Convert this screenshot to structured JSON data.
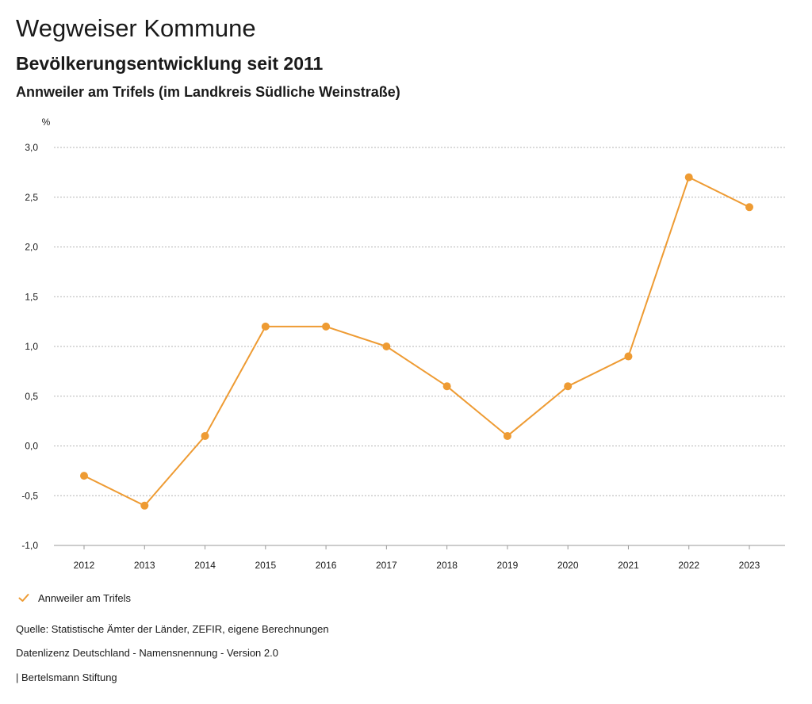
{
  "header": {
    "title": "Wegweiser Kommune",
    "subtitle": "Bevölkerungsentwicklung seit 2011",
    "region": "Annweiler am Trifels (im Landkreis Südliche Weinstraße)"
  },
  "chart_data": {
    "type": "line",
    "title": "Bevölkerungsentwicklung seit 2011",
    "xlabel": "",
    "ylabel": "%",
    "categories": [
      "2012",
      "2013",
      "2014",
      "2015",
      "2016",
      "2017",
      "2018",
      "2019",
      "2020",
      "2021",
      "2022",
      "2023"
    ],
    "series": [
      {
        "name": "Annweiler am Trifels",
        "values": [
          -0.3,
          -0.6,
          0.1,
          1.2,
          1.2,
          1.0,
          0.6,
          0.1,
          0.6,
          0.9,
          2.7,
          2.4
        ],
        "color": "#ee9b33"
      }
    ],
    "ylim": [
      -1.0,
      3.0
    ],
    "yticks": [
      -1.0,
      -0.5,
      0.0,
      0.5,
      1.0,
      1.5,
      2.0,
      2.5,
      3.0
    ],
    "ytick_labels": [
      "-1,0",
      "-0,5",
      "0,0",
      "0,5",
      "1,0",
      "1,5",
      "2,0",
      "2,5",
      "3,0"
    ],
    "grid": true,
    "legend": "bottom-left"
  },
  "footer": {
    "source": "Quelle: Statistische Ämter der Länder, ZEFIR, eigene Berechnungen",
    "license": "Datenlizenz Deutschland - Namensnennung - Version 2.0",
    "publisher": "| Bertelsmann Stiftung"
  }
}
